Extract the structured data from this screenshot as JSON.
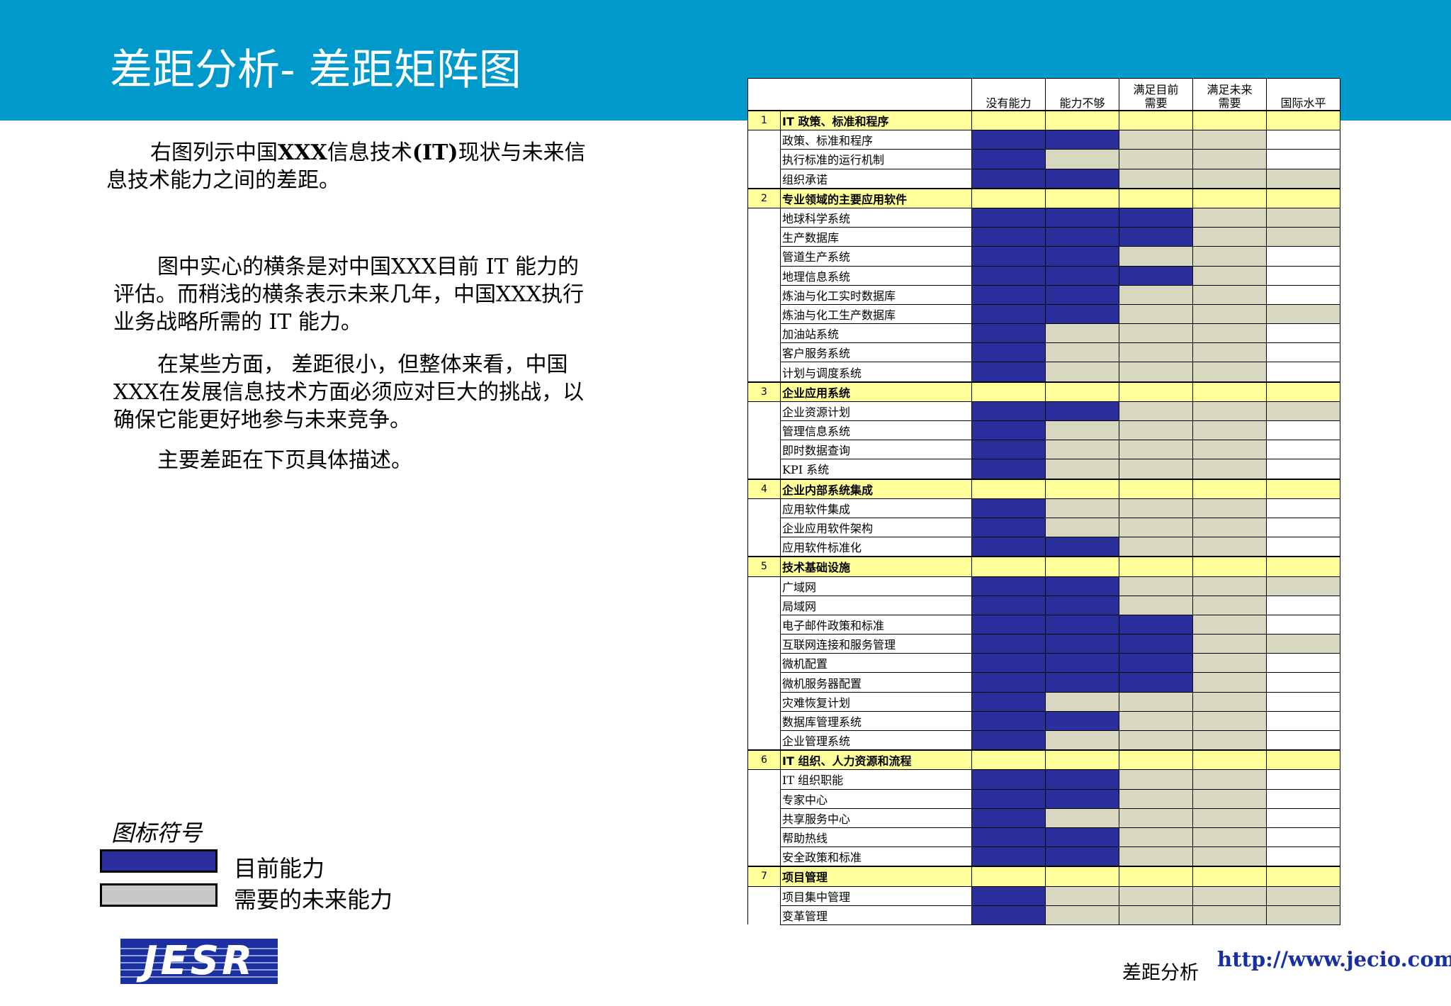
{
  "title": "差距分析- 差距矩阵图",
  "intro": {
    "p1_pre": "右图列示中国",
    "p1_bold1": "XXX",
    "p1_mid": "信息技术",
    "p1_bold2": "(IT)",
    "p1_post": "现状与未来信息技术能力之间的差距。",
    "p2": "图中实心的横条是对中国XXX目前 IT 能力的评估。而稍浅的横条表示未来几年，中国XXX执行业务战略所需的 IT 能力。",
    "p3": "在某些方面， 差距很小，但整体来看，中国XXX在发展信息技术方面必须应对巨大的挑战，以确保它能更好地参与未来竞争。",
    "p4": "主要差距在下页具体描述。"
  },
  "legend": {
    "title": "图标符号",
    "current_label": "目前能力",
    "future_label": "需要的未来能力",
    "current_color": "#2b2f9b",
    "future_color": "#c8c8c8"
  },
  "matrix": {
    "columns": [
      "没有能力",
      "能力不够",
      "满足目前需要",
      "满足未来需要",
      "国际水平"
    ],
    "column_lines": [
      [
        "没有能力"
      ],
      [
        "能力不够"
      ],
      [
        "满足目前",
        "需要"
      ],
      [
        "满足未来",
        "需要"
      ],
      [
        "国际水平"
      ]
    ],
    "groups": [
      {
        "num": "1",
        "title": "IT 政策、标准和程序",
        "levels": [
          0,
          0,
          0,
          0,
          0
        ],
        "items": [
          {
            "label": "政策、标准和程序",
            "levels": [
              2,
              2,
              1,
              1,
              0
            ]
          },
          {
            "label": "执行标准的运行机制",
            "levels": [
              2,
              1,
              1,
              1,
              0
            ]
          },
          {
            "label": "组织承诺",
            "levels": [
              2,
              2,
              1,
              1,
              1
            ]
          }
        ]
      },
      {
        "num": "2",
        "title": "专业领域的主要应用软件",
        "levels": [
          0,
          0,
          0,
          0,
          0
        ],
        "items": [
          {
            "label": "地球科学系统",
            "levels": [
              2,
              2,
              2,
              1,
              1
            ]
          },
          {
            "label": "生产数据库",
            "levels": [
              2,
              2,
              2,
              1,
              1
            ]
          },
          {
            "label": "管道生产系统",
            "levels": [
              2,
              2,
              1,
              1,
              0
            ]
          },
          {
            "label": "地理信息系统",
            "levels": [
              2,
              2,
              2,
              1,
              0
            ]
          },
          {
            "label": "炼油与化工实时数据库",
            "levels": [
              2,
              2,
              1,
              1,
              0
            ]
          },
          {
            "label": "炼油与化工生产数据库",
            "levels": [
              2,
              2,
              1,
              1,
              1
            ]
          },
          {
            "label": "加油站系统",
            "levels": [
              2,
              1,
              1,
              1,
              0
            ]
          },
          {
            "label": "客户服务系统",
            "levels": [
              2,
              1,
              1,
              1,
              0
            ]
          },
          {
            "label": "计划与调度系统",
            "levels": [
              2,
              1,
              1,
              1,
              0
            ]
          }
        ]
      },
      {
        "num": "3",
        "title": "企业应用系统",
        "levels": [
          0,
          0,
          0,
          0,
          0
        ],
        "items": [
          {
            "label": "企业资源计划",
            "levels": [
              2,
              2,
              1,
              1,
              1
            ]
          },
          {
            "label": "管理信息系统",
            "levels": [
              2,
              1,
              1,
              1,
              0
            ]
          },
          {
            "label": "即时数据查询",
            "levels": [
              2,
              1,
              1,
              1,
              0
            ]
          },
          {
            "label": "KPI 系统",
            "levels": [
              2,
              1,
              1,
              1,
              0
            ]
          }
        ]
      },
      {
        "num": "4",
        "title": "企业内部系统集成",
        "levels": [
          0,
          0,
          0,
          0,
          0
        ],
        "items": [
          {
            "label": "应用软件集成",
            "levels": [
              2,
              1,
              1,
              1,
              0
            ]
          },
          {
            "label": "企业应用软件架构",
            "levels": [
              2,
              1,
              1,
              1,
              0
            ]
          },
          {
            "label": "应用软件标准化",
            "levels": [
              2,
              2,
              1,
              1,
              0
            ]
          }
        ]
      },
      {
        "num": "5",
        "title": "技术基础设施",
        "levels": [
          0,
          0,
          0,
          0,
          0
        ],
        "items": [
          {
            "label": "广域网",
            "levels": [
              2,
              2,
              1,
              1,
              1
            ]
          },
          {
            "label": "局域网",
            "levels": [
              2,
              2,
              1,
              1,
              0
            ]
          },
          {
            "label": "电子邮件政策和标准",
            "levels": [
              2,
              2,
              2,
              1,
              0
            ]
          },
          {
            "label": "互联网连接和服务管理",
            "levels": [
              2,
              2,
              2,
              1,
              1
            ]
          },
          {
            "label": "微机配置",
            "levels": [
              2,
              2,
              2,
              1,
              0
            ]
          },
          {
            "label": "微机服务器配置",
            "levels": [
              2,
              2,
              2,
              1,
              0
            ]
          },
          {
            "label": "灾难恢复计划",
            "levels": [
              2,
              1,
              1,
              1,
              0
            ]
          },
          {
            "label": "数据库管理系统",
            "levels": [
              2,
              2,
              1,
              1,
              0
            ]
          },
          {
            "label": "企业管理系统",
            "levels": [
              2,
              1,
              1,
              1,
              0
            ]
          }
        ]
      },
      {
        "num": "6",
        "title": "IT  组织、人力资源和流程",
        "levels": [
          0,
          0,
          0,
          0,
          0
        ],
        "items": [
          {
            "label": "IT 组织职能",
            "levels": [
              2,
              2,
              1,
              1,
              0
            ]
          },
          {
            "label": "专家中心",
            "levels": [
              2,
              2,
              1,
              1,
              0
            ]
          },
          {
            "label": "共享服务中心",
            "levels": [
              2,
              1,
              1,
              1,
              0
            ]
          },
          {
            "label": "帮助热线",
            "levels": [
              2,
              2,
              1,
              1,
              0
            ]
          },
          {
            "label": "安全政策和标准",
            "levels": [
              2,
              2,
              1,
              1,
              0
            ]
          }
        ]
      },
      {
        "num": "7",
        "title": "项目管理",
        "levels": [
          0,
          0,
          0,
          0,
          0
        ],
        "items": [
          {
            "label": "项目集中管理",
            "levels": [
              2,
              1,
              1,
              1,
              1
            ]
          },
          {
            "label": "变革管理",
            "levels": [
              2,
              1,
              1,
              1,
              1
            ]
          }
        ]
      }
    ]
  },
  "footer": {
    "section": "差距分析",
    "url": "http://www.jecio.com",
    "logo_text": "JESR"
  }
}
